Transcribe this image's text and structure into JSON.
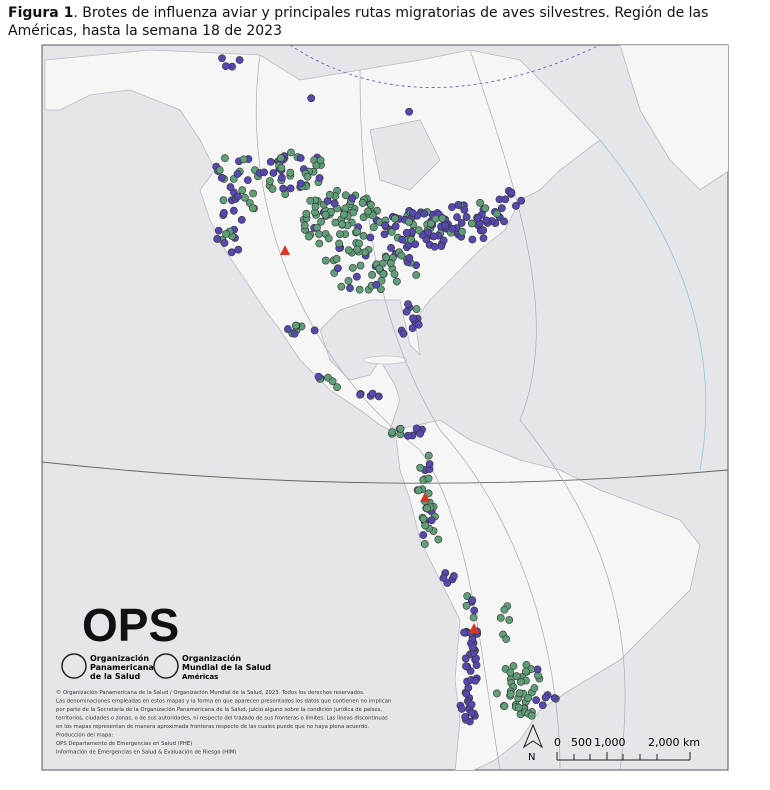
{
  "caption": {
    "label": "Figura 1",
    "line1": ". Brotes de influenza aviar y principales rutas migratorias de aves silvestres. Región de las",
    "line2": "Américas, hasta la semana 18 de 2023"
  },
  "logo": {
    "acronym": "OPS",
    "paho": [
      "Organización",
      "Panamericana",
      "de la Salud"
    ],
    "who": [
      "Organización",
      "Mundial de la Salud",
      "Américas"
    ]
  },
  "disclaimer": [
    "© Organización Panamericana de la Salud / Organización Mundial de la Salud, 2023. Todos los derechos reservados.",
    "Las denominaciones empleadas en estos mapas y la forma en que aparecen presentados los datos que contienen no implican",
    "por parte de la Secretaría de la Organización Panamericana de la Salud, juicio alguno sobre la condición jurídica de países,",
    "territorios, ciudades o zonas, o de sus autoridades, ni respecto del trazado de sus fronteras o límites. Las líneas discontinuas",
    "en los mapas representan de manera aproximada fronteras respecto de las cuales puede que no haya plena acuerdo.",
    "Producción del mapa:",
    "OPS Departamento de Emergencias en Salud (PHE)",
    "Información de Emergencias en Salud & Evaluación de Riesgo (HIM)"
  ],
  "north": "N",
  "scale": [
    "0",
    "500",
    "1,000",
    "2,000 km"
  ]
}
